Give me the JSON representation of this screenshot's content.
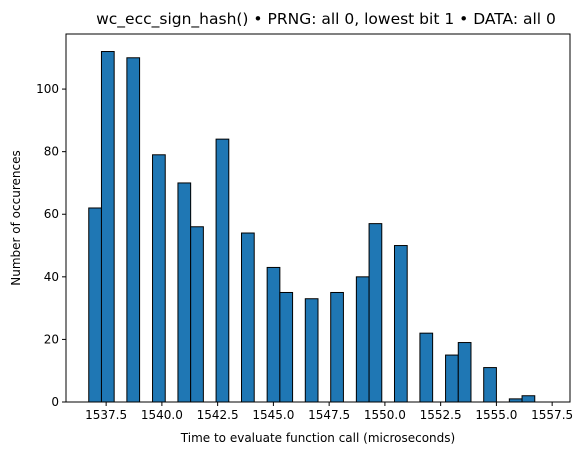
{
  "chart_data": {
    "type": "bar",
    "title": "wc_ecc_sign_hash() • PRNG: all 0, lowest bit 1 • DATA: all 0",
    "xlabel": "Time to evaluate function call (microseconds)",
    "ylabel": "Number of occurences",
    "xlim": [
      1535.7,
      1558.3
    ],
    "ylim": [
      0,
      117.6
    ],
    "bin_width": 0.57,
    "xticks": [
      1537.5,
      1540.0,
      1542.5,
      1545.0,
      1547.5,
      1550.0,
      1552.5,
      1555.0,
      1557.5
    ],
    "xtick_labels": [
      "1537.5",
      "1540.0",
      "1542.5",
      "1545.0",
      "1547.5",
      "1550.0",
      "1552.5",
      "1555.0",
      "1557.5"
    ],
    "yticks": [
      0,
      20,
      40,
      60,
      80,
      100
    ],
    "ytick_labels": [
      "0",
      "20",
      "40",
      "60",
      "80",
      "100"
    ],
    "grid": false,
    "bars": [
      {
        "x_start": 1536.72,
        "count": 62
      },
      {
        "x_start": 1537.29,
        "count": 112
      },
      {
        "x_start": 1538.43,
        "count": 110
      },
      {
        "x_start": 1539.58,
        "count": 79
      },
      {
        "x_start": 1540.72,
        "count": 70
      },
      {
        "x_start": 1541.29,
        "count": 56
      },
      {
        "x_start": 1542.43,
        "count": 84
      },
      {
        "x_start": 1543.57,
        "count": 54
      },
      {
        "x_start": 1544.72,
        "count": 43
      },
      {
        "x_start": 1545.29,
        "count": 35
      },
      {
        "x_start": 1546.43,
        "count": 33
      },
      {
        "x_start": 1547.57,
        "count": 35
      },
      {
        "x_start": 1548.72,
        "count": 40
      },
      {
        "x_start": 1549.29,
        "count": 57
      },
      {
        "x_start": 1550.43,
        "count": 50
      },
      {
        "x_start": 1551.57,
        "count": 22
      },
      {
        "x_start": 1552.72,
        "count": 15
      },
      {
        "x_start": 1553.29,
        "count": 19
      },
      {
        "x_start": 1554.43,
        "count": 11
      },
      {
        "x_start": 1555.58,
        "count": 1
      },
      {
        "x_start": 1556.15,
        "count": 2
      }
    ],
    "colors": {
      "bar_fill": "#1f77b4",
      "bar_edge": "#000000"
    }
  }
}
